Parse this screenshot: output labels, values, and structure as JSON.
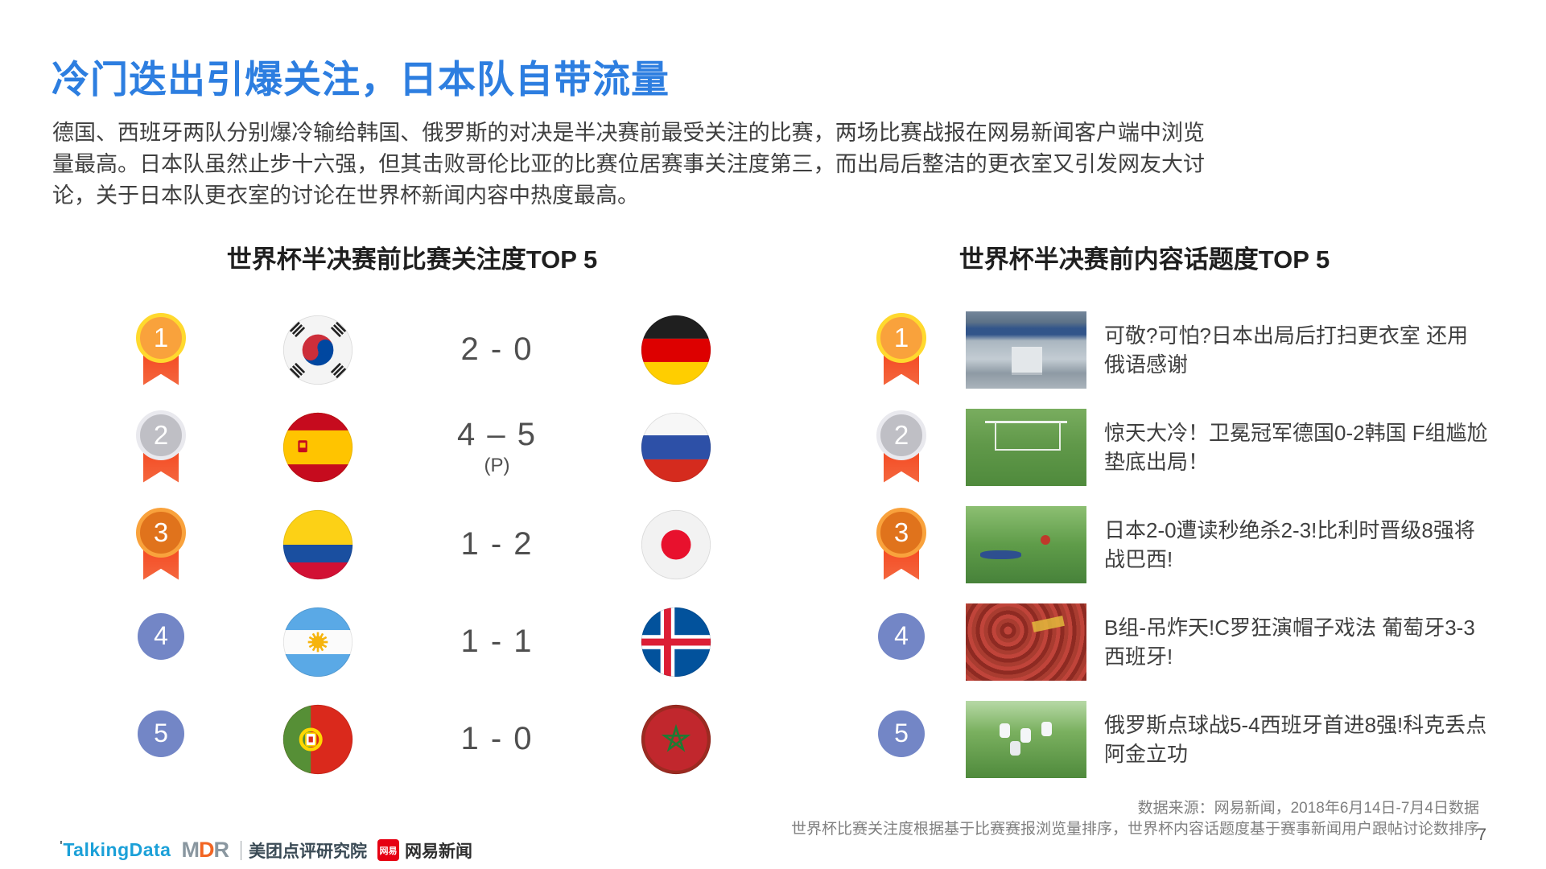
{
  "slide": {
    "title": "冷门迭出引爆关注，日本队自带流量",
    "body": "德国、西班牙两队分别爆冷输给韩国、俄罗斯的对决是半决赛前最受关注的比赛，两场比赛战报在网易新闻客户端中浏览量最高。日本队虽然止步十六强，但其击败哥伦比亚的比赛位居赛事关注度第三，而出局后整洁的更衣室又引发网友大讨论，关于日本队更衣室的讨论在世界杯新闻内容中热度最高。",
    "page_number": "7"
  },
  "colors": {
    "title_blue": "#2d7ee0",
    "medal_gold": "#f9a23c",
    "medal_gold_ring": "#ffd92e",
    "medal_silver": "#bfbfc5",
    "medal_silver_ring": "#e9e9ee",
    "medal_bronze": "#e0731c",
    "medal_bronze_ring": "#f9a23c",
    "ribbon_red": "#f4511e",
    "rank_circle_blue": "#7386c6"
  },
  "sections": {
    "matches": {
      "title": "世界杯半决赛前比赛关注度TOP 5",
      "rows": [
        {
          "rank": "1",
          "medal": "gold",
          "team_a": "south-korea",
          "score": "2 - 0",
          "score_note": "",
          "team_b": "germany"
        },
        {
          "rank": "2",
          "medal": "silver",
          "team_a": "spain",
          "score": "4 – 5",
          "score_note": "(P)",
          "team_b": "russia"
        },
        {
          "rank": "3",
          "medal": "bronze",
          "team_a": "colombia",
          "score": "1 - 2",
          "score_note": "",
          "team_b": "japan"
        },
        {
          "rank": "4",
          "medal": "plain",
          "team_a": "argentina",
          "score": "1 - 1",
          "score_note": "",
          "team_b": "iceland"
        },
        {
          "rank": "5",
          "medal": "plain",
          "team_a": "portugal",
          "score": "1 - 0",
          "score_note": "",
          "team_b": "morocco"
        }
      ]
    },
    "topics": {
      "title": "世界杯半决赛前内容话题度TOP 5",
      "rows": [
        {
          "rank": "1",
          "medal": "gold",
          "thumb": "locker",
          "headline": "可敬?可怕?日本出局后打扫更衣室 还用俄语感谢"
        },
        {
          "rank": "2",
          "medal": "silver",
          "thumb": "goal",
          "headline": "惊天大冷！卫冕冠军德国0-2韩国 F组尴尬垫底出局！"
        },
        {
          "rank": "3",
          "medal": "bronze",
          "thumb": "pitch",
          "headline": "日本2-0遭读秒绝杀2-3!比利时晋级8强将战巴西!"
        },
        {
          "rank": "4",
          "medal": "plain",
          "thumb": "crowd",
          "headline": "B组-吊炸天!C罗狂演帽子戏法 葡萄牙3-3西班牙!"
        },
        {
          "rank": "5",
          "medal": "plain",
          "thumb": "celebrate",
          "headline": "俄罗斯点球战5-4西班牙首进8强!科克丢点阿金立功"
        }
      ]
    }
  },
  "footer": {
    "source_line1": "数据来源：网易新闻，2018年6月14日-7月4日数据",
    "source_line2": "世界杯比赛关注度根据基于比赛赛报浏览量排序，世界杯内容话题度基于赛事新闻用户跟帖讨论数排序",
    "logos": {
      "talkingdata": "TalkingData",
      "mdr_m": "M",
      "mdr_d": "D",
      "mdr_r": "R",
      "mdr_org": "美团点评研究院",
      "netease_badge": "网易",
      "netease_name": "网易新闻"
    }
  }
}
